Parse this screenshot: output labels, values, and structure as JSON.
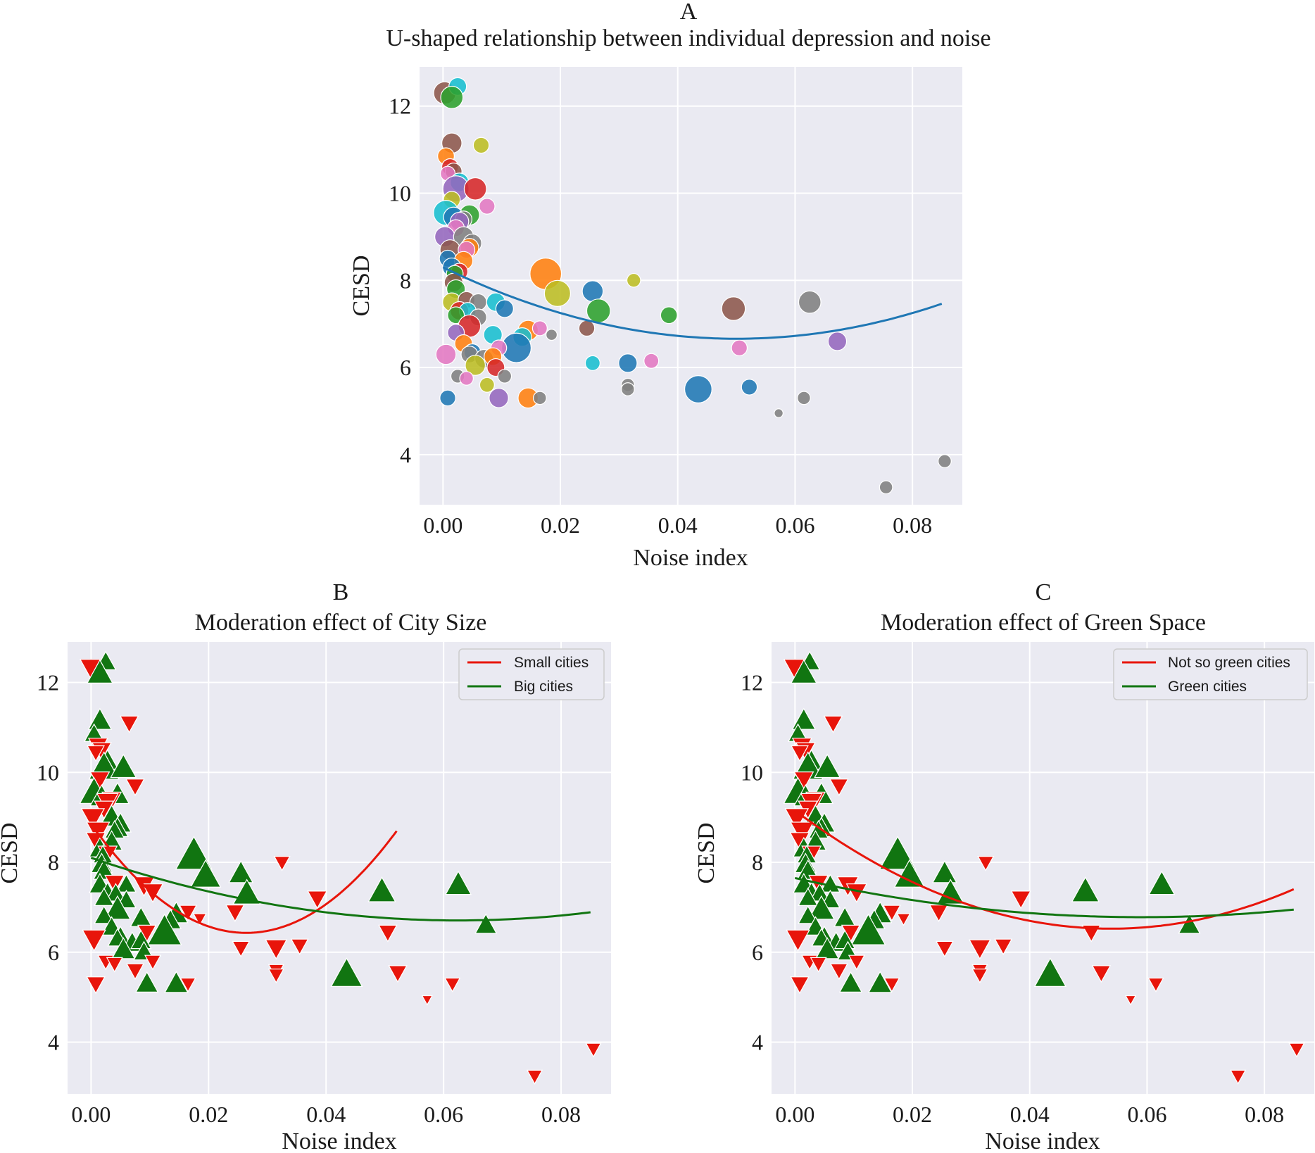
{
  "chart_data": [
    {
      "id": "A",
      "type": "scatter",
      "panel_letter": "A",
      "title": "U-shaped relationship between individual depression and noise",
      "xlabel": "Noise index",
      "ylabel": "CESD",
      "xlim": [
        -0.004,
        0.0885
      ],
      "ylim": [
        2.85,
        12.9
      ],
      "xticks": [
        0.0,
        0.02,
        0.04,
        0.06,
        0.08
      ],
      "xtick_labels": [
        "0.00",
        "0.02",
        "0.04",
        "0.06",
        "0.08"
      ],
      "yticks": [
        4,
        6,
        8,
        10,
        12
      ],
      "ytick_labels": [
        "4",
        "6",
        "8",
        "10",
        "12"
      ],
      "grid": true,
      "legend": null,
      "marker": "circle, hue = city (categorical), size = sample size",
      "fits": [
        {
          "name": "quadratic fit",
          "color": "#1f77b4",
          "a": 8.3,
          "b": -65.6,
          "c": 655.8,
          "x_range": [
            0.0,
            0.085
          ]
        }
      ]
    },
    {
      "id": "B",
      "type": "scatter",
      "panel_letter": "B",
      "title": "Moderation effect of City Size",
      "xlabel": "Noise index",
      "ylabel": "CESD",
      "xlim": [
        -0.004,
        0.0885
      ],
      "ylim": [
        2.85,
        12.9
      ],
      "xticks": [
        0.0,
        0.02,
        0.04,
        0.06,
        0.08
      ],
      "xtick_labels": [
        "0.00",
        "0.02",
        "0.04",
        "0.06",
        "0.08"
      ],
      "yticks": [
        4,
        6,
        8,
        10,
        12
      ],
      "ytick_labels": [
        "4",
        "6",
        "8",
        "10",
        "12"
      ],
      "grid": true,
      "legend": "top-right",
      "group_markers": [
        "red down-triangle = small cities",
        "green up-triangle = big cities"
      ],
      "fits": [
        {
          "name": "Small cities",
          "color": "#e8150b",
          "a": 8.85,
          "b": -183.1,
          "c": 3464.0,
          "x_range": [
            0.0,
            0.052
          ]
        },
        {
          "name": "Big cities",
          "color": "#117511",
          "a": 8.1,
          "b": -44.6,
          "c": 357.0,
          "x_range": [
            0.0,
            0.085
          ]
        }
      ]
    },
    {
      "id": "C",
      "type": "scatter",
      "panel_letter": "C",
      "title": "Moderation effect of Green Space",
      "xlabel": "Noise index",
      "ylabel": "CESD",
      "xlim": [
        -0.004,
        0.0885
      ],
      "ylim": [
        2.85,
        12.9
      ],
      "xticks": [
        0.0,
        0.02,
        0.04,
        0.06,
        0.08
      ],
      "xtick_labels": [
        "0.00",
        "0.02",
        "0.04",
        "0.06",
        "0.08"
      ],
      "yticks": [
        4,
        6,
        8,
        10,
        12
      ],
      "ytick_labels": [
        "4",
        "6",
        "8",
        "10",
        "12"
      ],
      "grid": true,
      "legend": "top-right",
      "group_markers": [
        "red down-triangle = not so green cities",
        "green up-triangle = green cities"
      ],
      "fits": [
        {
          "name": "Not so green cities",
          "color": "#e8150b",
          "a": 9.15,
          "b": -97.5,
          "c": 905.0,
          "x_range": [
            0.0,
            0.085
          ]
        },
        {
          "name": "Green cities",
          "color": "#117511",
          "a": 7.65,
          "b": -29.5,
          "c": 250.0,
          "x_range": [
            0.0,
            0.085
          ]
        }
      ]
    }
  ],
  "points": [
    [
      0.0003,
      12.3,
      160,
      "#8c564b",
      "R"
    ],
    [
      0.0025,
      12.45,
      100,
      "#17becf",
      "G"
    ],
    [
      0.0015,
      12.2,
      160,
      "#2ca02c",
      "G"
    ],
    [
      0.0015,
      11.15,
      130,
      "#8c564b",
      "G"
    ],
    [
      0.0065,
      11.1,
      80,
      "#bcbd22",
      "R"
    ],
    [
      0.0005,
      10.85,
      90,
      "#ff7f0e",
      "G"
    ],
    [
      0.0012,
      10.6,
      90,
      "#d62728",
      "R"
    ],
    [
      0.0018,
      10.5,
      90,
      "#8c564b",
      "R"
    ],
    [
      0.0008,
      10.45,
      70,
      "#e377c2",
      "R"
    ],
    [
      0.0028,
      10.25,
      110,
      "#17becf",
      "G"
    ],
    [
      0.0022,
      10.1,
      220,
      "#9467bd",
      "G"
    ],
    [
      0.0055,
      10.1,
      160,
      "#d62728",
      "G"
    ],
    [
      0.0015,
      9.85,
      90,
      "#bcbd22",
      "R"
    ],
    [
      0.0075,
      9.7,
      80,
      "#e377c2",
      "R"
    ],
    [
      0.0005,
      9.55,
      200,
      "#17becf",
      "G"
    ],
    [
      0.0045,
      9.5,
      130,
      "#2ca02c",
      "G"
    ],
    [
      0.0018,
      9.45,
      130,
      "#1f77b4",
      "G"
    ],
    [
      0.0035,
      9.4,
      90,
      "#7f7f7f",
      "R"
    ],
    [
      0.0028,
      9.35,
      110,
      "#9467bd",
      "R"
    ],
    [
      0.0022,
      9.2,
      90,
      "#e377c2",
      "R"
    ],
    [
      0.0003,
      9.0,
      130,
      "#9467bd",
      "R"
    ],
    [
      0.0035,
      9.0,
      130,
      "#7f7f7f",
      "G"
    ],
    [
      0.005,
      8.85,
      110,
      "#7f7f7f",
      "G"
    ],
    [
      0.0045,
      8.75,
      110,
      "#ff7f0e",
      "G"
    ],
    [
      0.0012,
      8.7,
      130,
      "#8c564b",
      "R"
    ],
    [
      0.004,
      8.7,
      90,
      "#e377c2",
      "G"
    ],
    [
      0.0008,
      8.5,
      90,
      "#1f77b4",
      "R"
    ],
    [
      0.0035,
      8.45,
      110,
      "#ff7f0e",
      "G"
    ],
    [
      0.0015,
      8.3,
      110,
      "#1f77b4",
      "G"
    ],
    [
      0.0028,
      8.2,
      90,
      "#d62728",
      "R"
    ],
    [
      0.002,
      8.15,
      90,
      "#2ca02c",
      "G"
    ],
    [
      0.0018,
      7.95,
      110,
      "#8c564b",
      "G"
    ],
    [
      0.0022,
      7.8,
      110,
      "#2ca02c",
      "G"
    ],
    [
      0.0175,
      8.15,
      320,
      "#ff7f0e",
      "G"
    ],
    [
      0.0325,
      8.0,
      60,
      "#bcbd22",
      "R"
    ],
    [
      0.0195,
      7.7,
      220,
      "#bcbd22",
      "G"
    ],
    [
      0.0255,
      7.75,
      140,
      "#1f77b4",
      "G"
    ],
    [
      0.0015,
      7.5,
      110,
      "#bcbd22",
      "G"
    ],
    [
      0.004,
      7.55,
      90,
      "#8c564b",
      "R"
    ],
    [
      0.006,
      7.5,
      90,
      "#7f7f7f",
      "G"
    ],
    [
      0.009,
      7.5,
      110,
      "#17becf",
      "R"
    ],
    [
      0.0105,
      7.35,
      100,
      "#1f77b4",
      "R"
    ],
    [
      0.0028,
      7.3,
      110,
      "#d62728",
      "G"
    ],
    [
      0.0042,
      7.3,
      90,
      "#17becf",
      "G"
    ],
    [
      0.0022,
      7.2,
      90,
      "#2ca02c",
      "G"
    ],
    [
      0.0495,
      7.35,
      180,
      "#8c564b",
      "G"
    ],
    [
      0.0625,
      7.5,
      160,
      "#7f7f7f",
      "G"
    ],
    [
      0.0265,
      7.3,
      180,
      "#2ca02c",
      "G"
    ],
    [
      0.0385,
      7.2,
      90,
      "#2ca02c",
      "R"
    ],
    [
      0.006,
      7.15,
      90,
      "#7f7f7f",
      "G"
    ],
    [
      0.0045,
      6.95,
      160,
      "#d62728",
      "G"
    ],
    [
      0.0022,
      6.8,
      90,
      "#9467bd",
      "G"
    ],
    [
      0.0085,
      6.75,
      110,
      "#17becf",
      "G"
    ],
    [
      0.0145,
      6.85,
      130,
      "#ff7f0e",
      "G"
    ],
    [
      0.0165,
      6.9,
      70,
      "#e377c2",
      "R"
    ],
    [
      0.0245,
      6.9,
      80,
      "#8c564b",
      "R"
    ],
    [
      0.0185,
      6.75,
      40,
      "#7f7f7f",
      "R"
    ],
    [
      0.0672,
      6.6,
      110,
      "#9467bd",
      "G"
    ],
    [
      0.0135,
      6.7,
      110,
      "#17becf",
      "G"
    ],
    [
      0.0125,
      6.45,
      280,
      "#1f77b4",
      "G"
    ],
    [
      0.0035,
      6.55,
      100,
      "#ff7f0e",
      "G"
    ],
    [
      0.005,
      6.35,
      90,
      "#1f77b4",
      "G"
    ],
    [
      0.0005,
      6.3,
      130,
      "#e377c2",
      "R"
    ],
    [
      0.0505,
      6.45,
      80,
      "#e377c2",
      "R"
    ],
    [
      0.0095,
      6.45,
      80,
      "#e377c2",
      "R"
    ],
    [
      0.0045,
      6.3,
      90,
      "#7f7f7f",
      "G"
    ],
    [
      0.007,
      6.2,
      110,
      "#7f7f7f",
      "G"
    ],
    [
      0.0085,
      6.25,
      100,
      "#ff7f0e",
      "G"
    ],
    [
      0.0315,
      6.1,
      110,
      "#1f77b4",
      "R"
    ],
    [
      0.0255,
      6.1,
      70,
      "#17becf",
      "R"
    ],
    [
      0.0355,
      6.15,
      70,
      "#e377c2",
      "R"
    ],
    [
      0.0055,
      6.05,
      130,
      "#bcbd22",
      "G"
    ],
    [
      0.009,
      6.0,
      100,
      "#d62728",
      "G"
    ],
    [
      0.0025,
      5.8,
      60,
      "#7f7f7f",
      "R"
    ],
    [
      0.004,
      5.75,
      60,
      "#e377c2",
      "R"
    ],
    [
      0.0075,
      5.6,
      70,
      "#bcbd22",
      "R"
    ],
    [
      0.0315,
      5.6,
      55,
      "#7f7f7f",
      "R"
    ],
    [
      0.0315,
      5.5,
      55,
      "#7f7f7f",
      "R"
    ],
    [
      0.0105,
      5.8,
      60,
      "#7f7f7f",
      "R"
    ],
    [
      0.0435,
      5.5,
      240,
      "#1f77b4",
      "G"
    ],
    [
      0.0522,
      5.55,
      80,
      "#1f77b4",
      "R"
    ],
    [
      0.0008,
      5.3,
      80,
      "#1f77b4",
      "R"
    ],
    [
      0.0095,
      5.3,
      120,
      "#9467bd",
      "G"
    ],
    [
      0.0145,
      5.3,
      130,
      "#ff7f0e",
      "G"
    ],
    [
      0.0165,
      5.3,
      55,
      "#7f7f7f",
      "R"
    ],
    [
      0.0615,
      5.3,
      55,
      "#7f7f7f",
      "R"
    ],
    [
      0.0572,
      4.95,
      25,
      "#7f7f7f",
      "R"
    ],
    [
      0.0855,
      3.85,
      55,
      "#7f7f7f",
      "R"
    ],
    [
      0.0755,
      3.25,
      55,
      "#7f7f7f",
      "R"
    ]
  ]
}
